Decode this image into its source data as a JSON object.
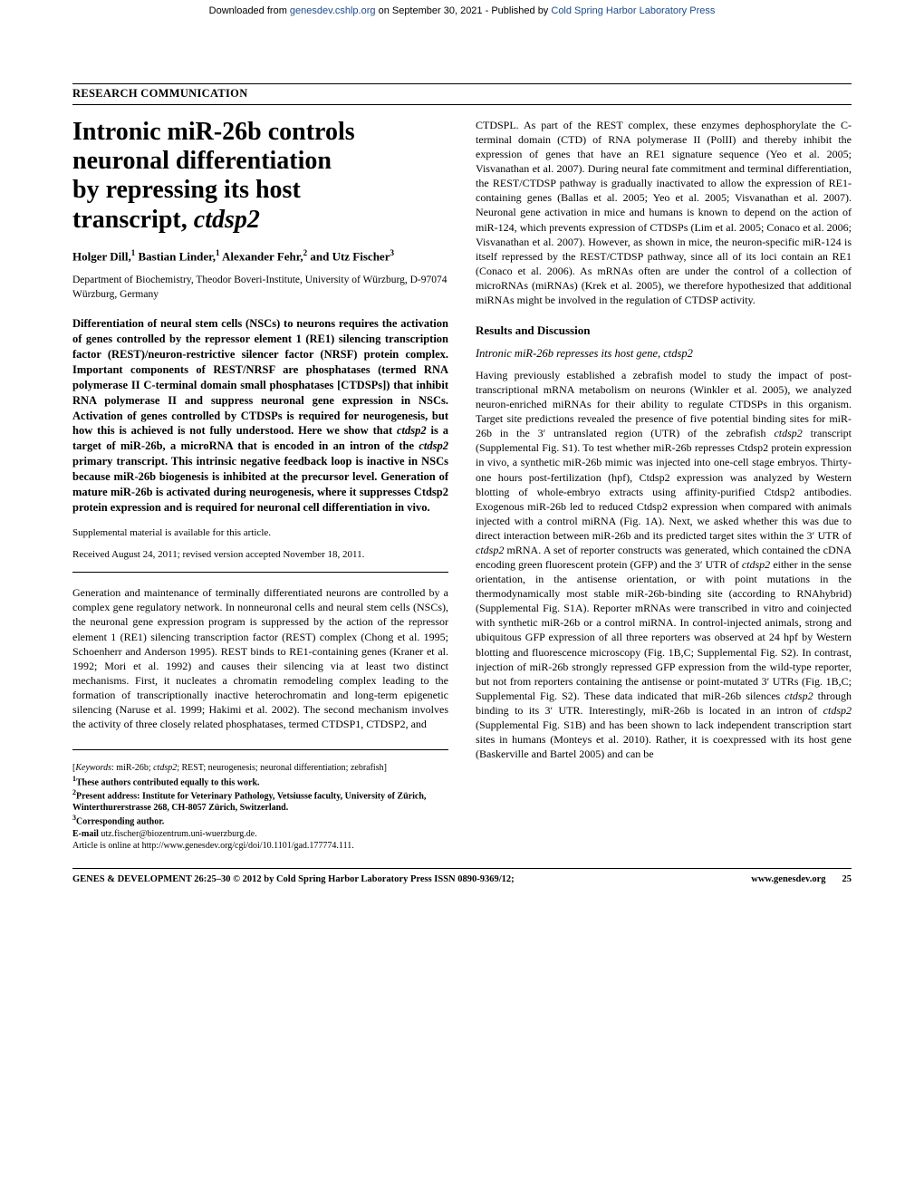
{
  "header": {
    "prefix": "Downloaded from ",
    "link1": "genesdev.cshlp.org",
    "mid": " on September 30, 2021 - Published by ",
    "link2": "Cold Spring Harbor Laboratory Press"
  },
  "section_label": "RESEARCH COMMUNICATION",
  "title_lines": {
    "l1": "Intronic miR-26b controls",
    "l2": "neuronal differentiation",
    "l3": "by repressing its host",
    "l4_a": "transcript, ",
    "l4_b_ital": "ctdsp2"
  },
  "authors_html": "Holger Dill,<sup>1</sup> Bastian Linder,<sup>1</sup> Alexander Fehr,<sup>2</sup> and Utz Fischer<sup>3</sup>",
  "affil": "Department of Biochemistry, Theodor Boveri-Institute, University of Würzburg, D-97074 Würzburg, Germany",
  "abstract_parts": [
    {
      "t": "Differentiation of neural stem cells (NSCs) to neurons requires the activation of genes controlled by the repressor element 1 (RE1) silencing transcription factor (REST)/neuron-restrictive silencer factor (NRSF) protein complex. Important components of REST/NRSF are phosphatases (termed RNA polymerase II C-terminal domain small phosphatases [CTDSPs]) that inhibit RNA polymerase II and suppress neuronal gene expression in NSCs. Activation of genes controlled by CTDSPs is required for neurogenesis, but how this is achieved is not fully understood. Here we show that "
    },
    {
      "t": "ctdsp2",
      "ital": true
    },
    {
      "t": " is a target of miR-26b, a microRNA that is encoded in an intron of the "
    },
    {
      "t": "ctdsp2",
      "ital": true
    },
    {
      "t": " primary transcript. This intrinsic negative feedback loop is inactive in NSCs because miR-26b biogenesis is inhibited at the precursor level. Generation of mature miR-26b is activated during neurogenesis, where it suppresses Ctdsp2 protein expression and is required for neuronal cell differentiation in vivo."
    }
  ],
  "supp": "Supplemental material is available for this article.",
  "received": "Received August 24, 2011; revised version accepted November 18, 2011.",
  "intro": "Generation and maintenance of terminally differentiated neurons are controlled by a complex gene regulatory network. In nonneuronal cells and neural stem cells (NSCs), the neuronal gene expression program is suppressed by the action of the repressor element 1 (RE1) silencing transcription factor (REST) complex (Chong et al. 1995; Schoenherr and Anderson 1995). REST binds to RE1-containing genes (Kraner et al. 1992; Mori et al. 1992) and causes their silencing via at least two distinct mechanisms. First, it nucleates a chromatin remodeling complex leading to the formation of transcriptionally inactive heterochromatin and long-term epigenetic silencing (Naruse et al. 1999; Hakimi et al. 2002). The second mechanism involves the activity of three closely related phosphatases, termed CTDSP1, CTDSP2, and",
  "keywords_prefix": "[",
  "keywords_label_ital": "Keywords",
  "keywords_body": ": miR-26b; ",
  "keywords_ital2": "ctdsp2",
  "keywords_rest": "; REST; neurogenesis; neuronal differentiation; zebrafish]",
  "fn1": "These authors contributed equally to this work.",
  "fn2": "Present address: Institute for Veterinary Pathology, Vetsiusse faculty, University of Zürich, Winterthurerstrasse 268, CH-8057 Zürich, Switzerland.",
  "fn3": "Corresponding author.",
  "fn_email_label": "E-mail ",
  "fn_email": "utz.fischer@biozentrum.uni-wuerzburg.de.",
  "fn_article": "Article is online at http://www.genesdev.org/cgi/doi/10.1101/gad.177774.111.",
  "col2_p1": "CTDSPL. As part of the REST complex, these enzymes dephosphorylate the C-terminal domain (CTD) of RNA polymerase II (PolII) and thereby inhibit the expression of genes that have an RE1 signature sequence (Yeo et al. 2005; Visvanathan et al. 2007). During neural fate commitment and terminal differentiation, the REST/CTDSP pathway is gradually inactivated to allow the expression of RE1-containing genes (Ballas et al. 2005; Yeo et al. 2005; Visvanathan et al. 2007). Neuronal gene activation in mice and humans is known to depend on the action of miR-124, which prevents expression of CTDSPs (Lim et al. 2005; Conaco et al. 2006; Visvanathan et al. 2007). However, as shown in mice, the neuron-specific miR-124 is itself repressed by the REST/CTDSP pathway, since all of its loci contain an RE1 (Conaco et al. 2006). As mRNAs often are under the control of a collection of microRNAs (miRNAs) (Krek et al. 2005), we therefore hypothesized that additional miRNAs might be involved in the regulation of CTDSP activity.",
  "results_head": "Results and Discussion",
  "results_sub": "Intronic miR-26b represses its host gene, ctdsp2",
  "col2_p2_parts": [
    {
      "t": "Having previously established a zebrafish model to study the impact of post-transcriptional mRNA metabolism on neurons (Winkler et al. 2005), we analyzed neuron-enriched miRNAs for their ability to regulate CTDSPs in this organism. Target site predictions revealed the presence of five potential binding sites for miR-26b in the 3′ untranslated region (UTR) of the zebrafish "
    },
    {
      "t": "ctdsp2",
      "ital": true
    },
    {
      "t": " transcript (Supplemental Fig. S1). To test whether miR-26b represses Ctdsp2 protein expression in vivo, a synthetic miR-26b mimic was injected into one-cell stage embryos. Thirty-one hours post-fertilization (hpf), Ctdsp2 expression was analyzed by Western blotting of whole-embryo extracts using affinity-purified Ctdsp2 antibodies. Exogenous miR-26b led to reduced Ctdsp2 expression when compared with animals injected with a control miRNA (Fig. 1A). Next, we asked whether this was due to direct interaction between miR-26b and its predicted target sites within the 3′ UTR of "
    },
    {
      "t": "ctdsp2",
      "ital": true
    },
    {
      "t": " mRNA. A set of reporter constructs was generated, which contained the cDNA encoding green fluorescent protein (GFP) and the 3′ UTR of "
    },
    {
      "t": "ctdsp2",
      "ital": true
    },
    {
      "t": " either in the sense orientation, in the antisense orientation, or with point mutations in the thermodynamically most stable miR-26b-binding site (according to RNAhybrid) (Supplemental Fig. S1A). Reporter mRNAs were transcribed in vitro and coinjected with synthetic miR-26b or a control miRNA. In control-injected animals, strong and ubiquitous GFP expression of all three reporters was observed at 24 hpf by Western blotting and fluorescence microscopy (Fig. 1B,C; Supplemental Fig. S2). In contrast, injection of miR-26b strongly repressed GFP expression from the wild-type reporter, but not from reporters containing the antisense or point-mutated 3′ UTRs (Fig. 1B,C; Supplemental Fig. S2). These data indicated that miR-26b silences "
    },
    {
      "t": "ctdsp2",
      "ital": true
    },
    {
      "t": " through binding to its 3′ UTR. Interestingly, miR-26b is located in an intron of "
    },
    {
      "t": "ctdsp2",
      "ital": true
    },
    {
      "t": " (Supplemental Fig. S1B) and has been shown to lack independent transcription start sites in humans (Monteys et al. 2010). Rather, it is coexpressed with its host gene (Baskerville and Bartel 2005) and can be"
    }
  ],
  "footer": {
    "left": "GENES & DEVELOPMENT 26:25–30 © 2012 by Cold Spring Harbor Laboratory Press ISSN 0890-9369/12;",
    "right1": "www.genesdev.org",
    "page": "25"
  }
}
